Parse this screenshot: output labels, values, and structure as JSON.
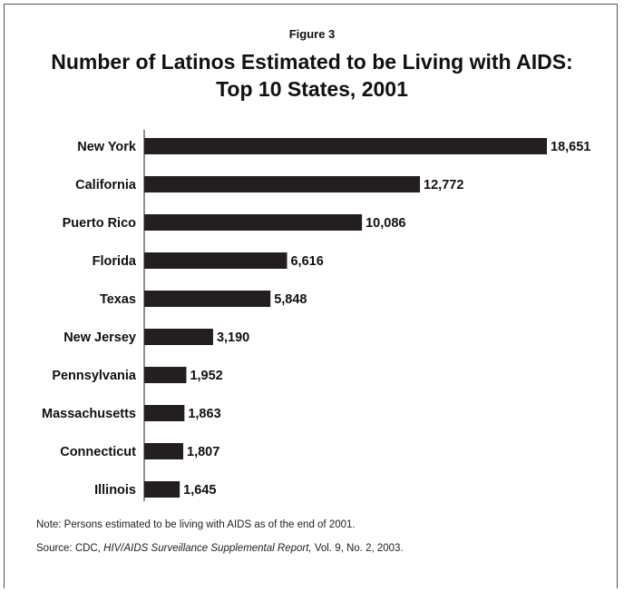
{
  "figure_label": "Figure 3",
  "title_line1": "Number of Latinos Estimated to be Living with AIDS:",
  "title_line2": "Top 10 States, 2001",
  "chart_data": {
    "type": "bar",
    "orientation": "horizontal",
    "title": "Number of Latinos Estimated to be Living with AIDS: Top 10 States, 2001",
    "categories": [
      "New York",
      "California",
      "Puerto Rico",
      "Florida",
      "Texas",
      "New Jersey",
      "Pennsylvania",
      "Massachusetts",
      "Connecticut",
      "Illinois"
    ],
    "values": [
      18651,
      12772,
      10086,
      6616,
      5848,
      3190,
      1952,
      1863,
      1807,
      1645
    ],
    "value_labels": [
      "18,651",
      "12,772",
      "10,086",
      "6,616",
      "5,848",
      "3,190",
      "1,952",
      "1,863",
      "1,807",
      "1,645"
    ],
    "bar_color": "#231f20",
    "xlabel": "",
    "ylabel": "",
    "grid": false,
    "legend": "none"
  },
  "note": "Note: Persons estimated to be living with AIDS as of the end of 2001.",
  "source_prefix": "Source: CDC, ",
  "source_italic": "HIV/AIDS Surveillance Supplemental Report,",
  "source_suffix": " Vol. 9, No. 2, 2003."
}
